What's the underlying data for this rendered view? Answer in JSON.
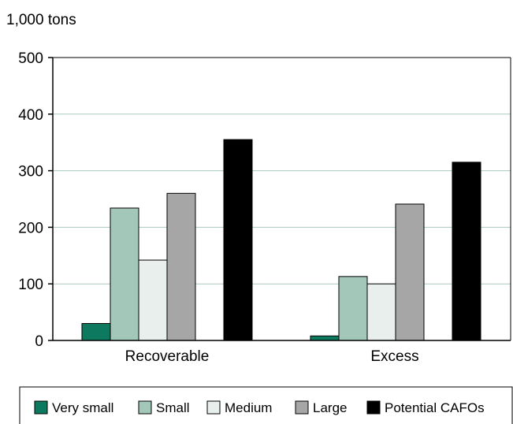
{
  "chart_data": {
    "type": "bar",
    "unit_label": "1,000 tons",
    "categories": [
      "Recoverable",
      "Excess"
    ],
    "series": [
      {
        "name": "Very small",
        "color": "#0d7a5f",
        "values": [
          30,
          8
        ]
      },
      {
        "name": "Small",
        "color": "#a3c7b8",
        "values": [
          234,
          113
        ]
      },
      {
        "name": "Medium",
        "color": "#e8efec",
        "values": [
          142,
          100
        ]
      },
      {
        "name": "Large",
        "color": "#a6a6a6",
        "values": [
          260,
          241
        ]
      },
      {
        "name": "Potential CAFOs",
        "color": "#000000",
        "values": [
          355,
          315
        ]
      }
    ],
    "ylim": [
      0,
      500
    ],
    "yticks": [
      0,
      100,
      200,
      300,
      400,
      500
    ],
    "grid": true,
    "legend_position": "bottom"
  }
}
